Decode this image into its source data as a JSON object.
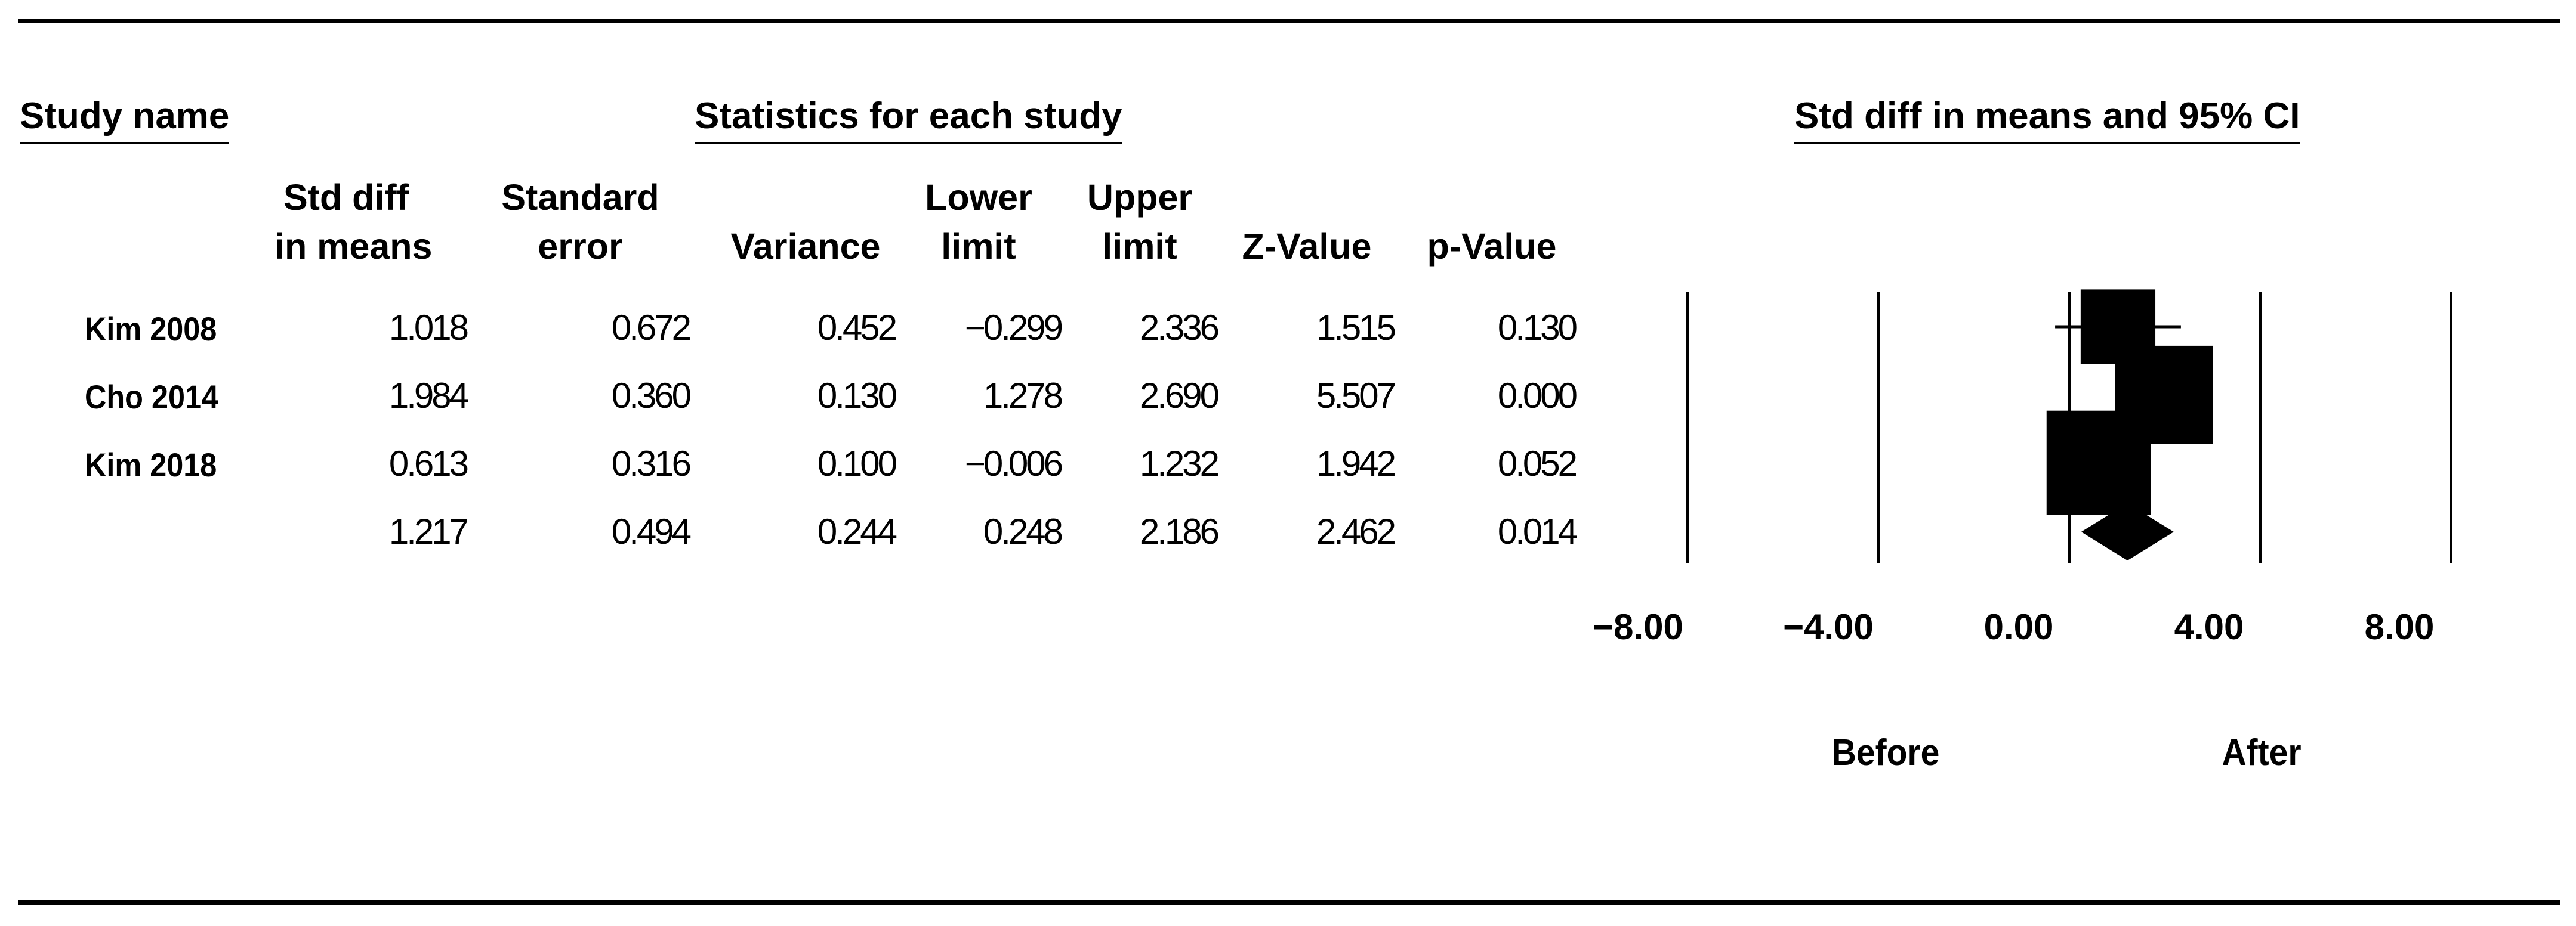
{
  "headers": {
    "study_name": "Study name",
    "statistics": "Statistics for each study",
    "plot": "Std diff in means and 95% CI"
  },
  "columns": [
    {
      "line1": "Std diff",
      "line2": "in means"
    },
    {
      "line1": "Standard",
      "line2": "error"
    },
    {
      "line1": "",
      "line2": "Variance"
    },
    {
      "line1": "Lower",
      "line2": "limit"
    },
    {
      "line1": "Upper",
      "line2": "limit"
    },
    {
      "line1": "",
      "line2": "Z-Value"
    },
    {
      "line1": "",
      "line2": "p-Value"
    }
  ],
  "rows": [
    {
      "name": "Kim 2008",
      "std_diff": "1.018",
      "se": "0.672",
      "variance": "0.452",
      "lower": "−0.299",
      "upper": "2.336",
      "z": "1.515",
      "p": "0.130"
    },
    {
      "name": "Cho 2014",
      "std_diff": "1.984",
      "se": "0.360",
      "variance": "0.130",
      "lower": "1.278",
      "upper": "2.690",
      "z": "5.507",
      "p": "0.000"
    },
    {
      "name": "Kim 2018",
      "std_diff": "0.613",
      "se": "0.316",
      "variance": "0.100",
      "lower": "−0.006",
      "upper": "1.232",
      "z": "1.942",
      "p": "0.052"
    },
    {
      "name": "",
      "std_diff": "1.217",
      "se": "0.494",
      "variance": "0.244",
      "lower": "0.248",
      "upper": "2.186",
      "z": "2.462",
      "p": "0.014"
    }
  ],
  "axis": {
    "ticks": [
      "−8.00",
      "−4.00",
      "0.00",
      "4.00",
      "8.00"
    ],
    "left_label": "Before",
    "right_label": "After"
  },
  "chart_data": {
    "type": "forest",
    "x_range": [
      -8,
      8
    ],
    "x_ticks": [
      -8,
      -4,
      0,
      4,
      8
    ],
    "studies": [
      {
        "name": "Kim 2008",
        "estimate": 1.018,
        "lower": -0.299,
        "upper": 2.336,
        "weight": 0.22
      },
      {
        "name": "Cho 2014",
        "estimate": 1.984,
        "lower": 1.278,
        "upper": 2.69,
        "weight": 0.37
      },
      {
        "name": "Kim 2018",
        "estimate": 0.613,
        "lower": -0.006,
        "upper": 1.232,
        "weight": 0.41
      }
    ],
    "summary": {
      "estimate": 1.217,
      "lower": 0.248,
      "upper": 2.186
    }
  }
}
